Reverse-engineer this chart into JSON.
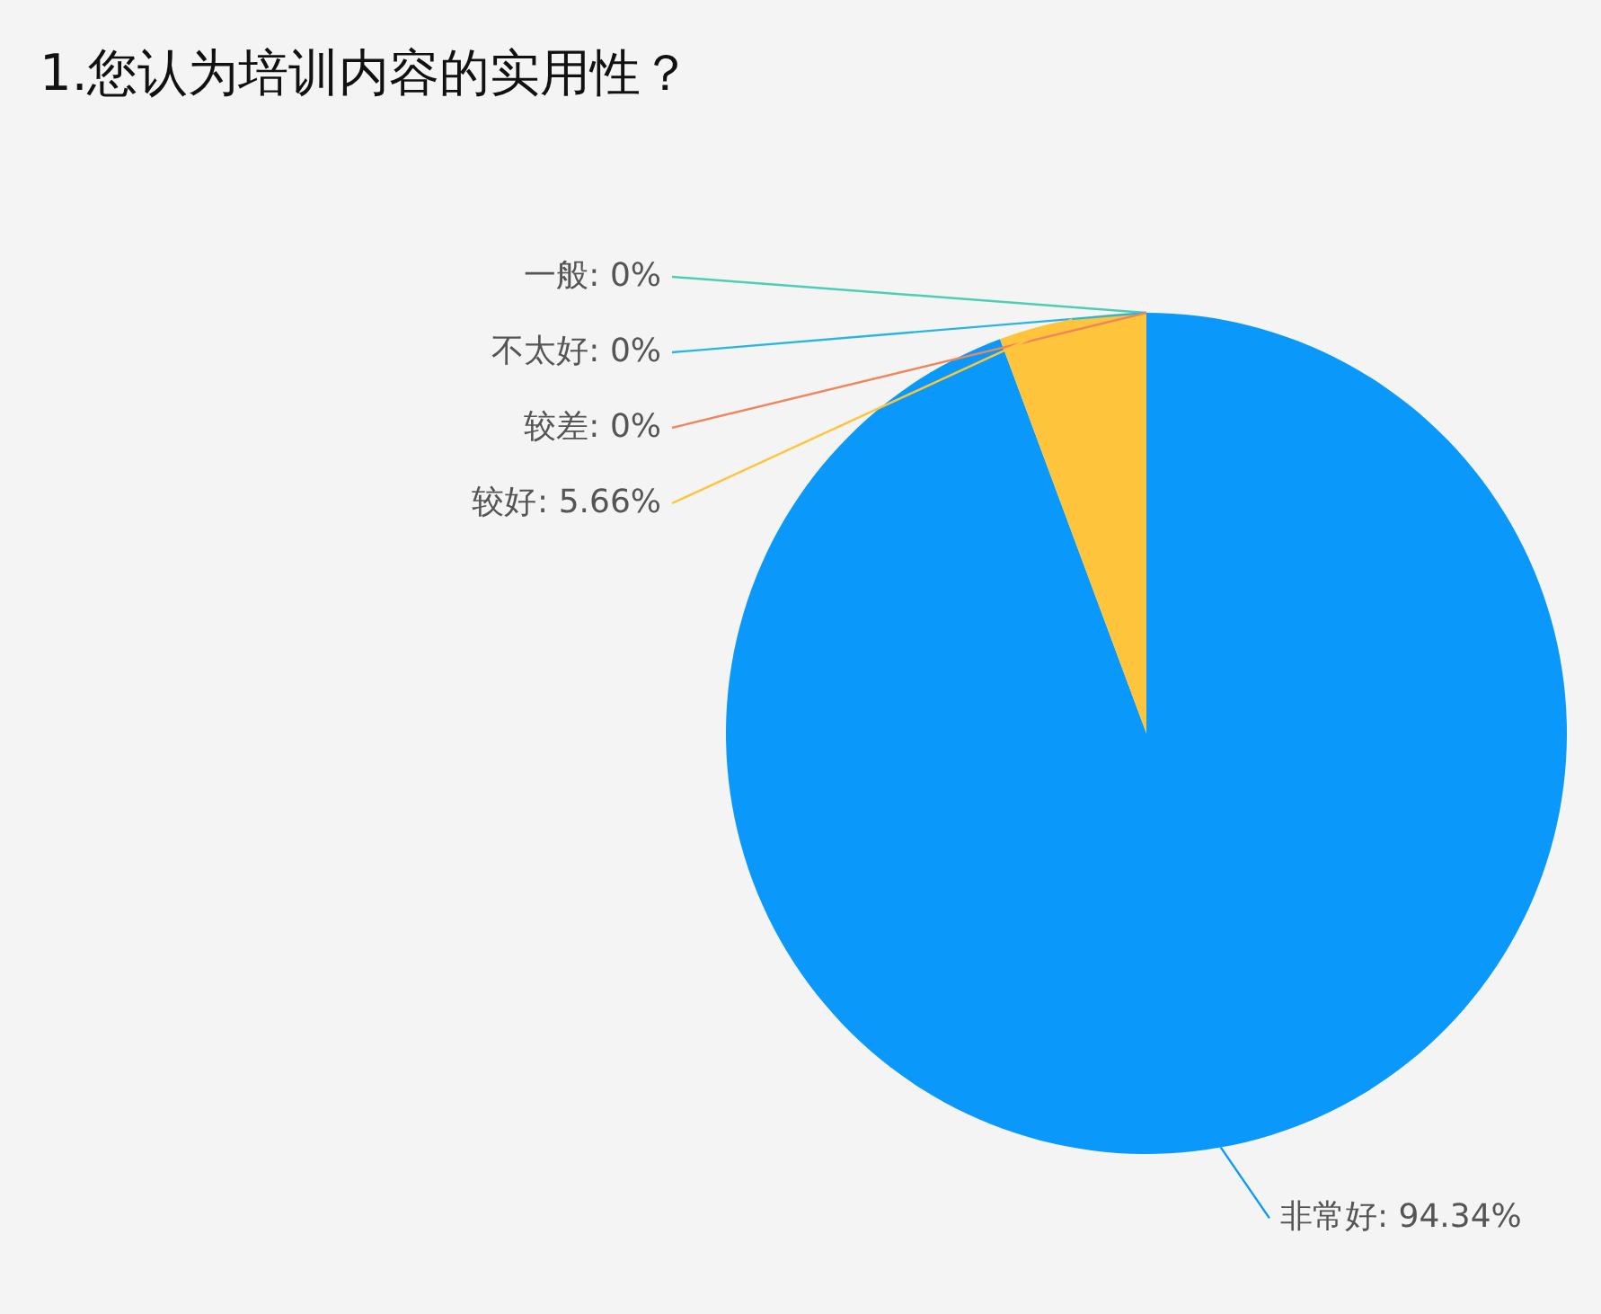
{
  "chart_data": {
    "type": "pie",
    "title": "1.您认为培训内容的实用性？",
    "categories": [
      "非常好",
      "较好",
      "较差",
      "不太好",
      "一般"
    ],
    "values": [
      94.34,
      5.66,
      0,
      0,
      0
    ],
    "value_labels": [
      ": 94.34%",
      ": 5.66%",
      ": 0%",
      ": 0%",
      ": 0%"
    ],
    "colors": [
      "#0a99fa",
      "#fdc43c",
      "#f0845a",
      "#29b5e3",
      "#4cceb4"
    ],
    "legend": false
  }
}
